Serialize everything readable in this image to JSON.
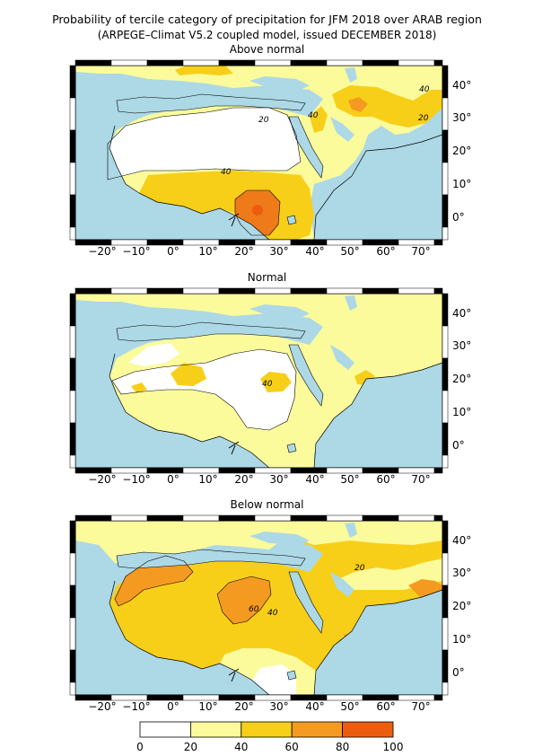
{
  "header": {
    "title": "Probability of tercile category of precipitation for JFM 2018 over ARAB region",
    "subtitle": "(ARPEGE–Climat V5.2 coupled model, issued DECEMBER 2018)"
  },
  "panels": [
    {
      "title": "Above normal",
      "contour_labels": [
        "40",
        "20",
        "40",
        "20",
        "40"
      ]
    },
    {
      "title": "Normal",
      "contour_labels": [
        "40"
      ]
    },
    {
      "title": "Below normal",
      "contour_labels": [
        "20",
        "40",
        "60"
      ]
    }
  ],
  "axes": {
    "lon_labels": [
      "−20°",
      "−10°",
      "0°",
      "10°",
      "20°",
      "30°",
      "40°",
      "50°",
      "60°",
      "70°"
    ],
    "lat_labels": [
      "40°",
      "30°",
      "20°",
      "10°",
      "0°"
    ]
  },
  "colorbar": {
    "ticks": [
      "0",
      "20",
      "40",
      "60",
      "80",
      "100"
    ],
    "colors": [
      "#ffffff",
      "#fbfb9c",
      "#f7cf19",
      "#f59a21",
      "#ee5c0f"
    ]
  },
  "colors": {
    "ocean": "#add8e6",
    "land": "#ffffff"
  }
}
